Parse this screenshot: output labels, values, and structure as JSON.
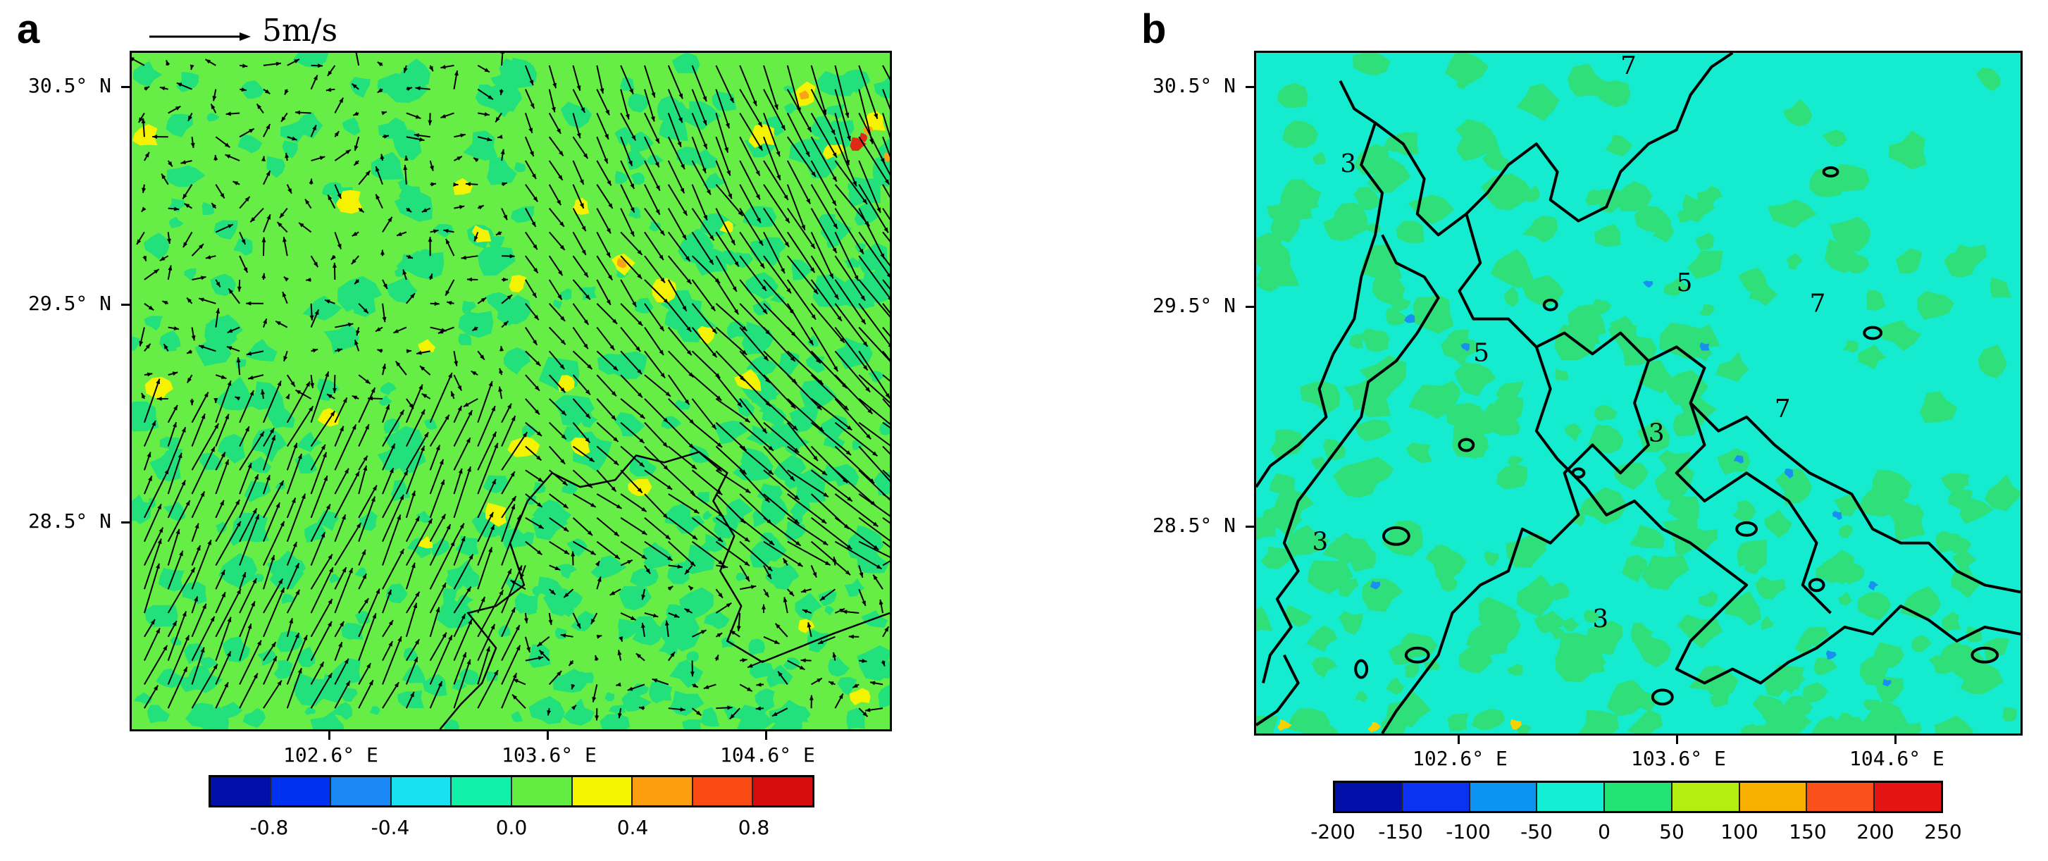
{
  "panel_a": {
    "letter": "a",
    "reference_vector_label": "5m/s",
    "y_ticks": [
      "30.5° N",
      "29.5° N",
      "28.5° N"
    ],
    "x_ticks": [
      "102.6° E",
      "103.6° E",
      "104.6° E"
    ],
    "colorbar": {
      "colors": [
        "#0010a8",
        "#0030f0",
        "#1a88f5",
        "#18e2f2",
        "#12f0a8",
        "#62ee40",
        "#f4f400",
        "#fc9e10",
        "#fa4a14",
        "#d60c0c"
      ],
      "labels": [
        "-0.8",
        "-0.4",
        "0.0",
        "0.4",
        "0.8"
      ]
    },
    "field_colors": {
      "background": "#66ed46",
      "patch_green": "#22e07c",
      "patch_yellow": "#f6f300",
      "patch_orange": "#fba318",
      "patch_red": "#e02a18",
      "arrow": "#000000",
      "outline": "#000000"
    }
  },
  "panel_b": {
    "letter": "b",
    "y_ticks": [
      "30.5° N",
      "29.5° N",
      "28.5° N"
    ],
    "x_ticks": [
      "102.6° E",
      "103.6° E",
      "104.6° E"
    ],
    "contour_labels": [
      "3",
      "5",
      "5",
      "3",
      "3",
      "3",
      "7",
      "7",
      "7"
    ],
    "colorbar": {
      "colors": [
        "#0010a8",
        "#0a32f0",
        "#0b94f2",
        "#14eed4",
        "#22e276",
        "#b4ee10",
        "#f8b000",
        "#fb501a",
        "#e41414"
      ],
      "labels": [
        "-200",
        "-150",
        "-100",
        "-50",
        "0",
        "50",
        "100",
        "150",
        "200",
        "250"
      ]
    },
    "field_colors": {
      "background": "#15eccf",
      "patch_green": "#2fdf7a",
      "patch_blue": "#1a8ff2",
      "patch_yellow": "#f7d200",
      "contour": "#000000"
    }
  }
}
